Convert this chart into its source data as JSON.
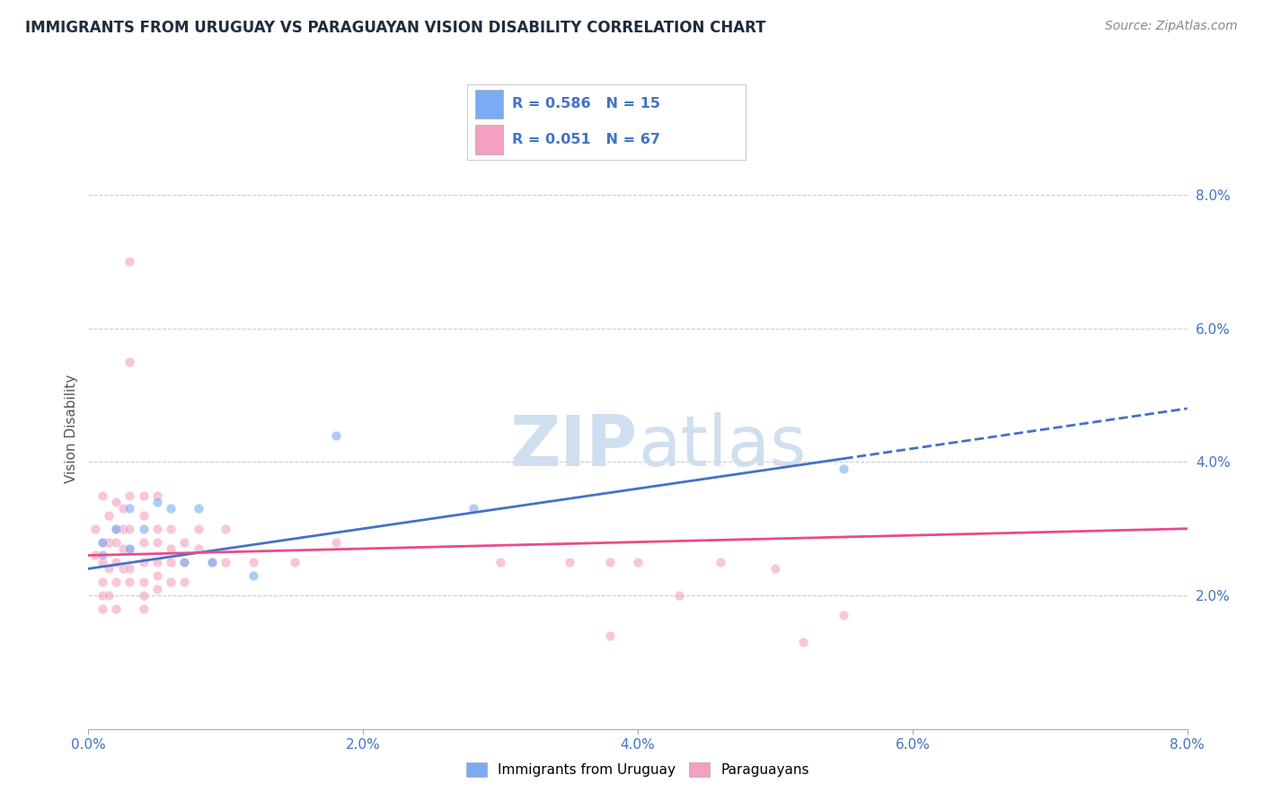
{
  "title": "IMMIGRANTS FROM URUGUAY VS PARAGUAYAN VISION DISABILITY CORRELATION CHART",
  "source": "Source: ZipAtlas.com",
  "ylabel": "Vision Disability",
  "xlabel_label_blue": "Immigrants from Uruguay",
  "xlabel_label_pink": "Paraguayans",
  "r_blue": 0.586,
  "n_blue": 15,
  "r_pink": 0.051,
  "n_pink": 67,
  "x_min": 0.0,
  "x_max": 0.08,
  "y_min": 0.0,
  "y_max": 0.09,
  "blue_scatter": [
    [
      0.001,
      0.026
    ],
    [
      0.001,
      0.028
    ],
    [
      0.002,
      0.03
    ],
    [
      0.003,
      0.027
    ],
    [
      0.003,
      0.033
    ],
    [
      0.004,
      0.03
    ],
    [
      0.005,
      0.034
    ],
    [
      0.006,
      0.033
    ],
    [
      0.007,
      0.025
    ],
    [
      0.008,
      0.033
    ],
    [
      0.009,
      0.025
    ],
    [
      0.012,
      0.023
    ],
    [
      0.018,
      0.044
    ],
    [
      0.028,
      0.033
    ],
    [
      0.055,
      0.039
    ]
  ],
  "pink_scatter": [
    [
      0.0005,
      0.03
    ],
    [
      0.0005,
      0.026
    ],
    [
      0.001,
      0.035
    ],
    [
      0.001,
      0.028
    ],
    [
      0.001,
      0.025
    ],
    [
      0.001,
      0.022
    ],
    [
      0.001,
      0.02
    ],
    [
      0.001,
      0.018
    ],
    [
      0.0015,
      0.032
    ],
    [
      0.0015,
      0.028
    ],
    [
      0.0015,
      0.024
    ],
    [
      0.0015,
      0.02
    ],
    [
      0.002,
      0.034
    ],
    [
      0.002,
      0.03
    ],
    [
      0.002,
      0.028
    ],
    [
      0.002,
      0.025
    ],
    [
      0.002,
      0.022
    ],
    [
      0.002,
      0.018
    ],
    [
      0.0025,
      0.033
    ],
    [
      0.0025,
      0.03
    ],
    [
      0.0025,
      0.027
    ],
    [
      0.0025,
      0.024
    ],
    [
      0.003,
      0.07
    ],
    [
      0.003,
      0.055
    ],
    [
      0.003,
      0.035
    ],
    [
      0.003,
      0.03
    ],
    [
      0.003,
      0.027
    ],
    [
      0.003,
      0.024
    ],
    [
      0.003,
      0.022
    ],
    [
      0.004,
      0.035
    ],
    [
      0.004,
      0.032
    ],
    [
      0.004,
      0.028
    ],
    [
      0.004,
      0.025
    ],
    [
      0.004,
      0.022
    ],
    [
      0.004,
      0.02
    ],
    [
      0.004,
      0.018
    ],
    [
      0.005,
      0.035
    ],
    [
      0.005,
      0.03
    ],
    [
      0.005,
      0.028
    ],
    [
      0.005,
      0.025
    ],
    [
      0.005,
      0.023
    ],
    [
      0.005,
      0.021
    ],
    [
      0.006,
      0.03
    ],
    [
      0.006,
      0.027
    ],
    [
      0.006,
      0.025
    ],
    [
      0.006,
      0.022
    ],
    [
      0.007,
      0.028
    ],
    [
      0.007,
      0.025
    ],
    [
      0.007,
      0.022
    ],
    [
      0.008,
      0.03
    ],
    [
      0.008,
      0.027
    ],
    [
      0.009,
      0.025
    ],
    [
      0.01,
      0.025
    ],
    [
      0.01,
      0.03
    ],
    [
      0.012,
      0.025
    ],
    [
      0.015,
      0.025
    ],
    [
      0.018,
      0.028
    ],
    [
      0.03,
      0.025
    ],
    [
      0.035,
      0.025
    ],
    [
      0.038,
      0.025
    ],
    [
      0.04,
      0.025
    ],
    [
      0.043,
      0.02
    ],
    [
      0.046,
      0.025
    ],
    [
      0.05,
      0.024
    ],
    [
      0.052,
      0.013
    ],
    [
      0.055,
      0.017
    ],
    [
      0.038,
      0.014
    ]
  ],
  "blue_line_start_x": 0.0,
  "blue_line_end_x": 0.08,
  "blue_line_solid_end_x": 0.055,
  "blue_line_start_y": 0.024,
  "blue_line_end_y": 0.048,
  "pink_line_start_y": 0.026,
  "pink_line_end_y": 0.03,
  "blue_line_color": "#4472C4",
  "pink_line_color": "#E84B8A",
  "blue_scatter_color": "#7AABF4",
  "pink_scatter_color": "#F4A0C0",
  "background_color": "#FFFFFF",
  "grid_color": "#CCCCCC",
  "title_color": "#1F2D3D",
  "axis_label_color": "#4472C4",
  "legend_r_color": "#4472C4",
  "watermark_color": "#D0DFF0",
  "scatter_size": 60,
  "scatter_alpha": 0.6,
  "line_width": 2.0
}
